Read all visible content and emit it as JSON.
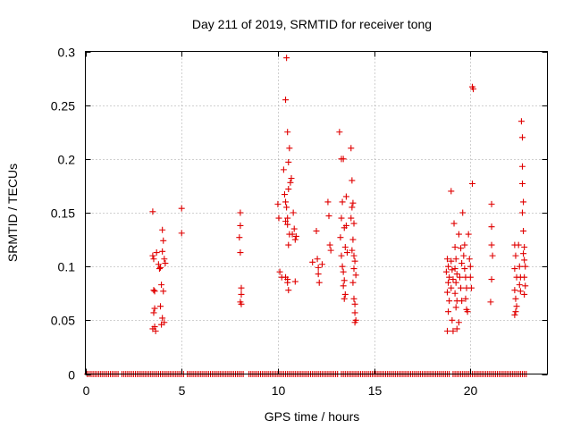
{
  "chart_data": {
    "type": "scatter",
    "title": "Day 211 of 2019, SRMTID for receiver tong",
    "xlabel": "GPS time / hours",
    "ylabel": "SRMTID / TECUs",
    "xlim": [
      0,
      24
    ],
    "ylim": [
      0,
      0.3
    ],
    "xticks": [
      0,
      5,
      10,
      15,
      20
    ],
    "xtick_labels": [
      "0",
      "5",
      "10",
      "15",
      "20"
    ],
    "yticks": [
      0,
      0.05,
      0.1,
      0.15,
      0.2,
      0.25,
      0.3
    ],
    "ytick_labels": [
      "0",
      "0.05",
      "0.1",
      "0.15",
      "0.2",
      "0.25",
      "0.3"
    ],
    "grid": true,
    "marker": "+",
    "color": "#e00000",
    "zero_ranges": [
      [
        0.1,
        1.7
      ],
      [
        1.9,
        5.1
      ],
      [
        5.3,
        8.2
      ],
      [
        8.5,
        13.1
      ],
      [
        13.3,
        18.9
      ],
      [
        19.1,
        22.9
      ]
    ],
    "series": [
      {
        "name": "SRMTID",
        "points": [
          [
            3.5,
            0.151
          ],
          [
            3.5,
            0.11
          ],
          [
            3.55,
            0.107
          ],
          [
            3.55,
            0.078
          ],
          [
            3.6,
            0.077
          ],
          [
            3.6,
            0.061
          ],
          [
            3.55,
            0.057
          ],
          [
            3.5,
            0.042
          ],
          [
            3.6,
            0.044
          ],
          [
            3.65,
            0.04
          ],
          [
            3.7,
            0.113
          ],
          [
            3.8,
            0.102
          ],
          [
            3.85,
            0.098
          ],
          [
            3.9,
            0.099
          ],
          [
            4.0,
            0.134
          ],
          [
            4.05,
            0.124
          ],
          [
            4.0,
            0.114
          ],
          [
            4.1,
            0.107
          ],
          [
            4.15,
            0.103
          ],
          [
            3.95,
            0.083
          ],
          [
            4.05,
            0.077
          ],
          [
            3.9,
            0.063
          ],
          [
            4.0,
            0.052
          ],
          [
            4.1,
            0.048
          ],
          [
            3.95,
            0.046
          ],
          [
            5.0,
            0.154
          ],
          [
            5.0,
            0.131
          ],
          [
            8.05,
            0.15
          ],
          [
            8.05,
            0.138
          ],
          [
            8.0,
            0.127
          ],
          [
            8.05,
            0.113
          ],
          [
            8.1,
            0.08
          ],
          [
            8.1,
            0.074
          ],
          [
            8.05,
            0.067
          ],
          [
            8.1,
            0.065
          ],
          [
            10.0,
            0.158
          ],
          [
            10.05,
            0.145
          ],
          [
            10.1,
            0.095
          ],
          [
            10.2,
            0.09
          ],
          [
            10.3,
            0.19
          ],
          [
            10.35,
            0.167
          ],
          [
            10.4,
            0.16
          ],
          [
            10.45,
            0.155
          ],
          [
            10.4,
            0.142
          ],
          [
            10.5,
            0.139
          ],
          [
            10.45,
            0.294
          ],
          [
            10.4,
            0.255
          ],
          [
            10.5,
            0.225
          ],
          [
            10.6,
            0.21
          ],
          [
            10.55,
            0.197
          ],
          [
            10.7,
            0.182
          ],
          [
            10.65,
            0.178
          ],
          [
            10.55,
            0.172
          ],
          [
            10.5,
            0.145
          ],
          [
            10.6,
            0.13
          ],
          [
            10.55,
            0.12
          ],
          [
            10.5,
            0.088
          ],
          [
            10.55,
            0.078
          ],
          [
            10.5,
            0.085
          ],
          [
            10.75,
            0.13
          ],
          [
            10.8,
            0.15
          ],
          [
            10.85,
            0.135
          ],
          [
            10.9,
            0.125
          ],
          [
            10.95,
            0.128
          ],
          [
            10.9,
            0.086
          ],
          [
            10.4,
            0.09
          ],
          [
            11.8,
            0.104
          ],
          [
            12.0,
            0.133
          ],
          [
            12.05,
            0.107
          ],
          [
            12.1,
            0.099
          ],
          [
            12.1,
            0.093
          ],
          [
            12.15,
            0.085
          ],
          [
            12.3,
            0.102
          ],
          [
            12.6,
            0.16
          ],
          [
            12.65,
            0.147
          ],
          [
            12.7,
            0.12
          ],
          [
            12.75,
            0.115
          ],
          [
            13.2,
            0.225
          ],
          [
            13.3,
            0.2
          ],
          [
            13.4,
            0.2
          ],
          [
            13.35,
            0.16
          ],
          [
            13.3,
            0.145
          ],
          [
            13.25,
            0.127
          ],
          [
            13.3,
            0.11
          ],
          [
            13.35,
            0.1
          ],
          [
            13.4,
            0.095
          ],
          [
            13.45,
            0.087
          ],
          [
            13.4,
            0.082
          ],
          [
            13.5,
            0.074
          ],
          [
            13.45,
            0.07
          ],
          [
            13.45,
            0.136
          ],
          [
            13.55,
            0.165
          ],
          [
            13.55,
            0.138
          ],
          [
            13.5,
            0.118
          ],
          [
            13.6,
            0.113
          ],
          [
            13.8,
            0.21
          ],
          [
            13.85,
            0.18
          ],
          [
            13.9,
            0.159
          ],
          [
            13.85,
            0.155
          ],
          [
            13.8,
            0.145
          ],
          [
            13.95,
            0.14
          ],
          [
            13.9,
            0.125
          ],
          [
            13.85,
            0.115
          ],
          [
            13.95,
            0.11
          ],
          [
            14.0,
            0.105
          ],
          [
            13.95,
            0.098
          ],
          [
            14.05,
            0.092
          ],
          [
            13.9,
            0.085
          ],
          [
            13.95,
            0.07
          ],
          [
            14.0,
            0.065
          ],
          [
            14.0,
            0.057
          ],
          [
            14.05,
            0.05
          ],
          [
            14.0,
            0.048
          ],
          [
            18.8,
            0.107
          ],
          [
            18.85,
            0.1
          ],
          [
            18.75,
            0.095
          ],
          [
            18.9,
            0.09
          ],
          [
            18.85,
            0.085
          ],
          [
            18.8,
            0.076
          ],
          [
            18.9,
            0.068
          ],
          [
            18.85,
            0.058
          ],
          [
            18.8,
            0.04
          ],
          [
            19.0,
            0.17
          ],
          [
            19.0,
            0.105
          ],
          [
            19.05,
            0.097
          ],
          [
            19.1,
            0.088
          ],
          [
            19.0,
            0.08
          ],
          [
            19.05,
            0.05
          ],
          [
            19.1,
            0.04
          ],
          [
            19.15,
            0.14
          ],
          [
            19.2,
            0.118
          ],
          [
            19.25,
            0.107
          ],
          [
            19.2,
            0.098
          ],
          [
            19.3,
            0.093
          ],
          [
            19.25,
            0.085
          ],
          [
            19.2,
            0.075
          ],
          [
            19.3,
            0.068
          ],
          [
            19.25,
            0.062
          ],
          [
            19.3,
            0.042
          ],
          [
            19.4,
            0.13
          ],
          [
            19.5,
            0.117
          ],
          [
            19.55,
            0.103
          ],
          [
            19.45,
            0.09
          ],
          [
            19.5,
            0.08
          ],
          [
            19.55,
            0.068
          ],
          [
            19.4,
            0.048
          ],
          [
            19.6,
            0.15
          ],
          [
            19.7,
            0.12
          ],
          [
            19.65,
            0.11
          ],
          [
            19.7,
            0.098
          ],
          [
            19.75,
            0.09
          ],
          [
            19.8,
            0.08
          ],
          [
            19.75,
            0.07
          ],
          [
            19.8,
            0.06
          ],
          [
            19.85,
            0.058
          ],
          [
            19.9,
            0.13
          ],
          [
            19.95,
            0.107
          ],
          [
            20.0,
            0.1
          ],
          [
            20.0,
            0.09
          ],
          [
            20.05,
            0.08
          ],
          [
            20.1,
            0.267
          ],
          [
            20.15,
            0.265
          ],
          [
            20.1,
            0.177
          ],
          [
            21.1,
            0.158
          ],
          [
            21.1,
            0.137
          ],
          [
            21.1,
            0.12
          ],
          [
            21.15,
            0.11
          ],
          [
            21.1,
            0.088
          ],
          [
            21.05,
            0.067
          ],
          [
            22.3,
            0.12
          ],
          [
            22.35,
            0.11
          ],
          [
            22.3,
            0.098
          ],
          [
            22.4,
            0.09
          ],
          [
            22.3,
            0.078
          ],
          [
            22.35,
            0.07
          ],
          [
            22.4,
            0.063
          ],
          [
            22.35,
            0.058
          ],
          [
            22.3,
            0.055
          ],
          [
            22.5,
            0.12
          ],
          [
            22.55,
            0.1
          ],
          [
            22.6,
            0.09
          ],
          [
            22.55,
            0.083
          ],
          [
            22.6,
            0.077
          ],
          [
            22.65,
            0.235
          ],
          [
            22.7,
            0.22
          ],
          [
            22.7,
            0.193
          ],
          [
            22.7,
            0.177
          ],
          [
            22.75,
            0.16
          ],
          [
            22.7,
            0.15
          ],
          [
            22.75,
            0.133
          ],
          [
            22.8,
            0.118
          ],
          [
            22.75,
            0.112
          ],
          [
            22.8,
            0.106
          ],
          [
            22.85,
            0.1
          ],
          [
            22.8,
            0.09
          ],
          [
            22.85,
            0.082
          ],
          [
            22.8,
            0.074
          ]
        ]
      }
    ]
  }
}
